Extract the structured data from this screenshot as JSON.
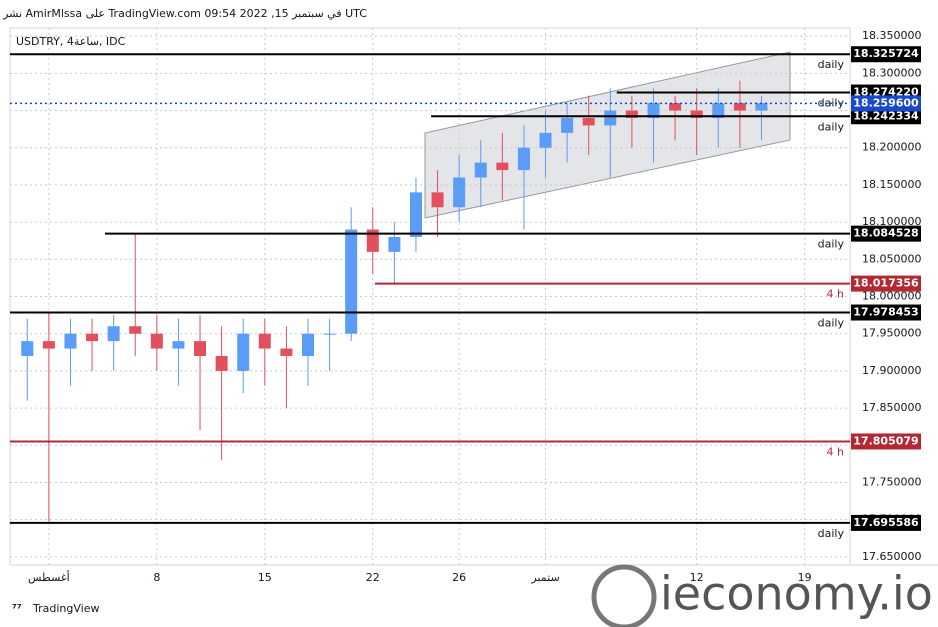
{
  "header": {
    "text": "نشر AmirMlssa على TradingView.com 09:54 2022 ,15 في سبتمبر UTC"
  },
  "chart_data": {
    "type": "candlestick",
    "symbol": "USDTRY, 4ساعة, IDC",
    "up_color": "#5b9cf6",
    "down_color": "#e2505f",
    "x": [
      -1,
      0,
      1,
      2,
      3,
      4,
      5,
      6,
      7,
      8,
      9,
      10,
      11,
      12,
      13,
      14,
      15,
      16,
      17,
      18,
      19,
      20,
      21,
      22,
      23,
      24,
      25,
      26,
      27,
      28,
      29,
      30,
      31,
      32,
      33
    ],
    "open": [
      17.92,
      17.94,
      17.93,
      17.95,
      17.94,
      17.96,
      17.95,
      17.93,
      17.94,
      17.92,
      17.9,
      17.95,
      17.93,
      17.92,
      17.95,
      17.95,
      18.09,
      18.06,
      18.08,
      18.14,
      18.12,
      18.16,
      18.18,
      18.17,
      18.2,
      18.22,
      18.24,
      18.23,
      18.25,
      18.24,
      18.26,
      18.25,
      18.24,
      18.26,
      18.25
    ],
    "high": [
      17.97,
      17.98,
      17.97,
      17.97,
      17.975,
      18.084528,
      17.975,
      17.97,
      17.975,
      17.96,
      17.97,
      17.97,
      17.96,
      17.97,
      17.97,
      18.12,
      18.12,
      18.1,
      18.16,
      18.17,
      18.19,
      18.21,
      18.22,
      18.23,
      18.25,
      18.26,
      18.27,
      18.28,
      18.27,
      18.28,
      18.27,
      18.28,
      18.28,
      18.29,
      18.27
    ],
    "low": [
      17.86,
      17.695586,
      17.88,
      17.9,
      17.9,
      17.92,
      17.9,
      17.88,
      17.82,
      17.78,
      17.87,
      17.88,
      17.85,
      17.88,
      17.9,
      17.94,
      18.03,
      18.017356,
      18.06,
      18.08,
      18.1,
      18.12,
      18.13,
      18.09,
      18.16,
      18.18,
      18.19,
      18.16,
      18.2,
      18.18,
      18.21,
      18.19,
      18.2,
      18.2,
      18.21
    ],
    "close": [
      17.94,
      17.93,
      17.95,
      17.94,
      17.96,
      17.95,
      17.93,
      17.94,
      17.92,
      17.9,
      17.95,
      17.93,
      17.92,
      17.95,
      17.95,
      18.09,
      18.06,
      18.08,
      18.14,
      18.12,
      18.16,
      18.18,
      18.17,
      18.2,
      18.22,
      18.24,
      18.23,
      18.25,
      18.24,
      18.26,
      18.25,
      18.24,
      18.26,
      18.25,
      18.26
    ],
    "xlim": [
      -1.8,
      37.1
    ],
    "xticks": [
      {
        "value": 0,
        "label": "أغسطس"
      },
      {
        "value": 5,
        "label": "8"
      },
      {
        "value": 10,
        "label": "15"
      },
      {
        "value": 15,
        "label": "22"
      },
      {
        "value": 19,
        "label": "26"
      },
      {
        "value": 23,
        "label": "ستمبر"
      },
      {
        "value": 30,
        "label": "12"
      },
      {
        "value": 35,
        "label": "19"
      }
    ],
    "ylim": [
      17.639,
      18.361
    ],
    "yticks": [
      {
        "value": 18.35,
        "label": "18.350000"
      },
      {
        "value": 18.3,
        "label": "18.300000"
      },
      {
        "value": 18.25,
        "label": "18.250000"
      },
      {
        "value": 18.2,
        "label": "18.200000"
      },
      {
        "value": 18.15,
        "label": "18.150000"
      },
      {
        "value": 18.1,
        "label": "18.100000"
      },
      {
        "value": 18.05,
        "label": "18.050000"
      },
      {
        "value": 18,
        "label": "18.000000"
      },
      {
        "value": 17.95,
        "label": "17.950000"
      },
      {
        "value": 17.9,
        "label": "17.900000"
      },
      {
        "value": 17.85,
        "label": "17.850000"
      },
      {
        "value": 17.8,
        "label": "17.800000"
      },
      {
        "value": 17.75,
        "label": "17.750000"
      },
      {
        "value": 17.7,
        "label": "17.700000"
      },
      {
        "value": 17.65,
        "label": "17.650000"
      }
    ],
    "grid": true,
    "levels": [
      {
        "price": 18.325724,
        "price_label": "18.325724",
        "label": "daily",
        "color": "#000000",
        "from": -1.8
      },
      {
        "price": 18.27422,
        "price_label": "18.274220",
        "label": "daily",
        "color": "#000000",
        "from": 26.3
      },
      {
        "price": 18.242334,
        "price_label": "18.242334",
        "label": "daily",
        "color": "#000000",
        "from": 17.7
      },
      {
        "price": 18.084528,
        "price_label": "18.084528",
        "label": "daily",
        "color": "#000000",
        "from": 2.6
      },
      {
        "price": 18.017356,
        "price_label": "18.017356",
        "label": "4 h",
        "color": "#b22833",
        "from": 15.1
      },
      {
        "price": 17.978453,
        "price_label": "17.978453",
        "label": "daily",
        "color": "#000000",
        "from": -1.8
      },
      {
        "price": 17.805079,
        "price_label": "17.805079",
        "label": "4 h",
        "color": "#b22833",
        "from": -1.8
      },
      {
        "price": 17.695586,
        "price_label": "17.695586",
        "label": "daily",
        "color": "#000000",
        "from": -1.8
      }
    ],
    "current_price": {
      "price": 18.2596,
      "price_label": "18.259600",
      "color": "#1848cc"
    }
  },
  "footer": {
    "brand": "TradingView",
    "watermark": "ieconomy.io"
  }
}
